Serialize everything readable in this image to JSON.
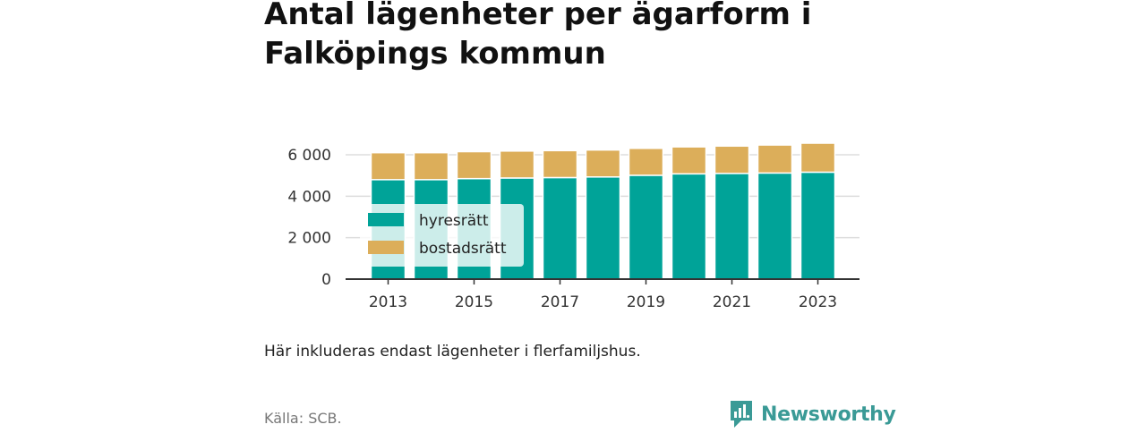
{
  "title": "Antal lägenheter per ägarform i Falköpings kommun",
  "caption": "Här inkluderas endast lägenheter i flerfamiljshus.",
  "source": "Källa: SCB.",
  "logo_text": "Newsworthy",
  "colors": {
    "hyresratt": "#00a398",
    "bostadsratt": "#dcae5a",
    "grid": "#dddddd",
    "axis": "#333333",
    "logo": "#3a9a96"
  },
  "chart_data": {
    "type": "bar",
    "stacked": true,
    "categories": [
      "2013",
      "2014",
      "2015",
      "2016",
      "2017",
      "2018",
      "2019",
      "2020",
      "2021",
      "2022",
      "2023"
    ],
    "series": [
      {
        "name": "hyresrätt",
        "values": [
          4800,
          4800,
          4850,
          4880,
          4900,
          4930,
          5010,
          5080,
          5100,
          5120,
          5160
        ]
      },
      {
        "name": "bostadsrätt",
        "values": [
          1300,
          1300,
          1300,
          1300,
          1300,
          1300,
          1300,
          1300,
          1320,
          1350,
          1400
        ]
      }
    ],
    "x_tick_labels": [
      "2013",
      "2015",
      "2017",
      "2019",
      "2021",
      "2023"
    ],
    "y_ticks": [
      0,
      2000,
      4000,
      6000
    ],
    "y_tick_labels": [
      "0",
      "2 000",
      "4 000",
      "6 000"
    ],
    "ylim": [
      0,
      6600
    ],
    "xlabel": "",
    "ylabel": "",
    "grid": true,
    "legend": "inside-left"
  }
}
